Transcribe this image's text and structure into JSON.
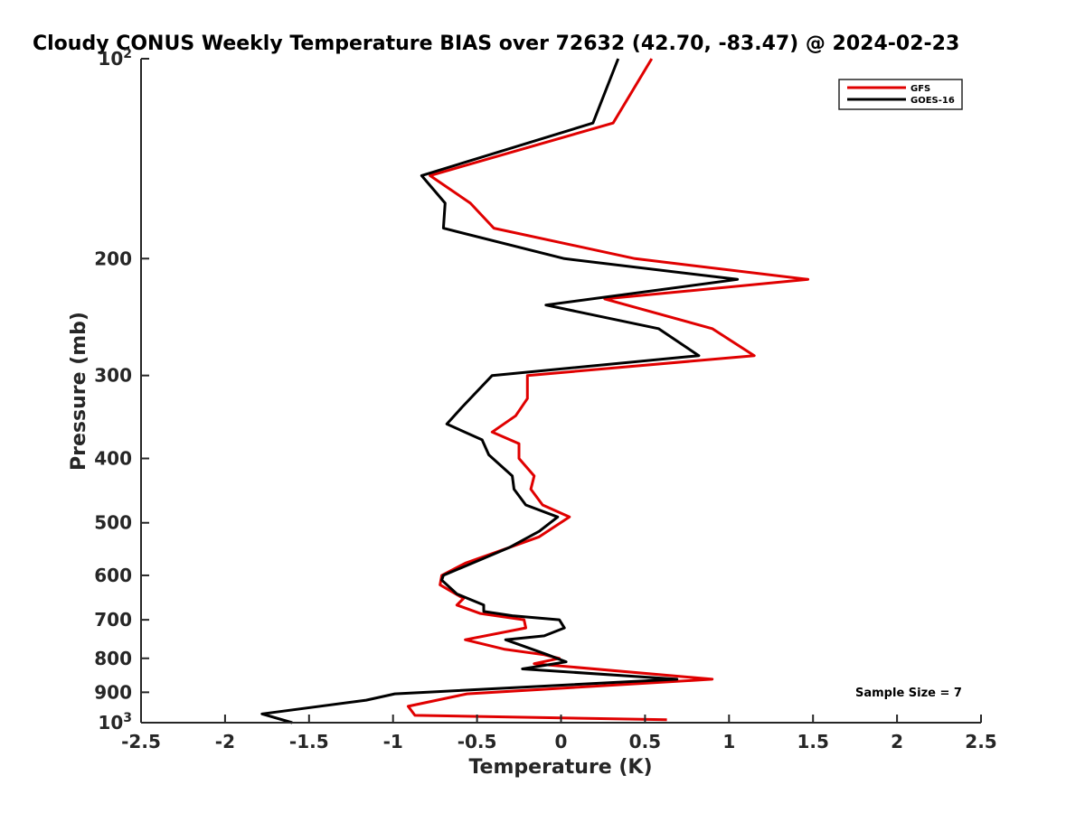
{
  "chart_data": {
    "type": "line",
    "title": "Cloudy CONUS Weekly Temperature BIAS over 72632 (42.70, -83.47) @ 2024-02-23",
    "xlabel": "Temperature (K)",
    "ylabel": "Pressure (mb)",
    "xlim": [
      -2.5,
      2.5
    ],
    "ylim": [
      100,
      1000
    ],
    "y_scale": "log",
    "y_reversed": true,
    "grid": false,
    "legend_position": "top-right",
    "x_ticks": [
      -2.5,
      -2,
      -1.5,
      -1,
      -0.5,
      0,
      0.5,
      1,
      1.5,
      2,
      2.5
    ],
    "x_tick_labels": [
      "-2.5",
      "-2",
      "-1.5",
      "-1",
      "-0.5",
      "0",
      "0.5",
      "1",
      "1.5",
      "2",
      "2.5"
    ],
    "y_ticks": [
      100,
      200,
      300,
      400,
      500,
      600,
      700,
      800,
      900,
      1000
    ],
    "y_tick_labels": [
      "10^2",
      "200",
      "300",
      "400",
      "500",
      "600",
      "700",
      "800",
      "900",
      "10^3"
    ],
    "annotation": "Sample Size = 7",
    "series": [
      {
        "name": "GFS",
        "color": "#e00000",
        "points": [
          [
            0.54,
            100
          ],
          [
            0.31,
            125
          ],
          [
            -0.78,
            150
          ],
          [
            -0.54,
            165
          ],
          [
            -0.4,
            180
          ],
          [
            0.44,
            200
          ],
          [
            1.47,
            215
          ],
          [
            0.26,
            230
          ],
          [
            0.9,
            255
          ],
          [
            1.15,
            280
          ],
          [
            -0.2,
            300
          ],
          [
            -0.2,
            325
          ],
          [
            -0.27,
            345
          ],
          [
            -0.41,
            365
          ],
          [
            -0.25,
            380
          ],
          [
            -0.25,
            400
          ],
          [
            -0.16,
            425
          ],
          [
            -0.18,
            445
          ],
          [
            -0.11,
            470
          ],
          [
            0.05,
            490
          ],
          [
            -0.13,
            525
          ],
          [
            -0.57,
            575
          ],
          [
            -0.71,
            600
          ],
          [
            -0.72,
            620
          ],
          [
            -0.58,
            650
          ],
          [
            -0.62,
            665
          ],
          [
            -0.48,
            685
          ],
          [
            -0.22,
            700
          ],
          [
            -0.21,
            720
          ],
          [
            -0.57,
            750
          ],
          [
            -0.34,
            775
          ],
          [
            -0.1,
            790
          ],
          [
            -0.01,
            800
          ],
          [
            -0.16,
            815
          ],
          [
            0.9,
            860
          ],
          [
            -0.56,
            905
          ],
          [
            -0.91,
            945
          ],
          [
            -0.87,
            975
          ],
          [
            0.63,
            990
          ]
        ]
      },
      {
        "name": "GOES-16",
        "color": "#000000",
        "points": [
          [
            0.34,
            100
          ],
          [
            0.19,
            125
          ],
          [
            -0.83,
            150
          ],
          [
            -0.69,
            165
          ],
          [
            -0.7,
            180
          ],
          [
            0.02,
            200
          ],
          [
            1.05,
            215
          ],
          [
            -0.09,
            235
          ],
          [
            0.58,
            255
          ],
          [
            0.82,
            280
          ],
          [
            -0.41,
            300
          ],
          [
            -0.59,
            335
          ],
          [
            -0.68,
            355
          ],
          [
            -0.47,
            375
          ],
          [
            -0.43,
            395
          ],
          [
            -0.29,
            425
          ],
          [
            -0.28,
            445
          ],
          [
            -0.21,
            470
          ],
          [
            -0.02,
            490
          ],
          [
            -0.13,
            515
          ],
          [
            -0.31,
            545
          ],
          [
            -0.7,
            600
          ],
          [
            -0.71,
            610
          ],
          [
            -0.62,
            640
          ],
          [
            -0.46,
            665
          ],
          [
            -0.46,
            680
          ],
          [
            -0.29,
            690
          ],
          [
            -0.01,
            700
          ],
          [
            0.02,
            720
          ],
          [
            -0.1,
            740
          ],
          [
            -0.33,
            750
          ],
          [
            -0.08,
            790
          ],
          [
            0.03,
            810
          ],
          [
            -0.23,
            830
          ],
          [
            0.69,
            860
          ],
          [
            -0.99,
            905
          ],
          [
            -1.16,
            925
          ],
          [
            -1.78,
            970
          ],
          [
            -1.6,
            1000
          ]
        ]
      }
    ]
  }
}
